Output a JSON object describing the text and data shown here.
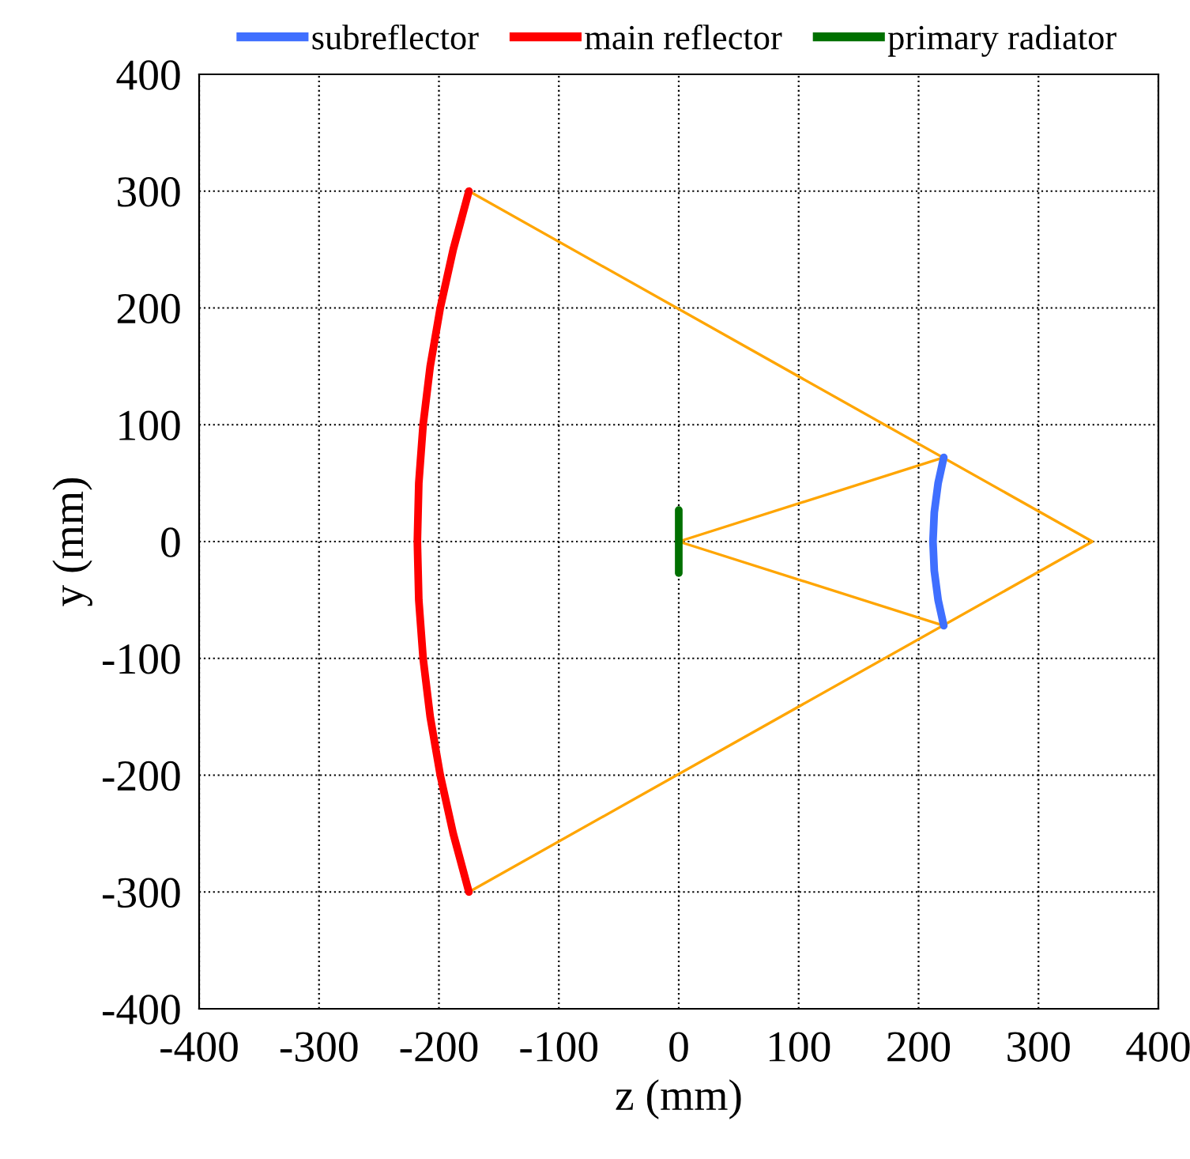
{
  "chart_data": {
    "type": "line",
    "xlabel": "z (mm)",
    "ylabel": "y (mm)",
    "xlim": [
      -400,
      400
    ],
    "ylim": [
      -400,
      400
    ],
    "xticks": [
      -400,
      -300,
      -200,
      -100,
      0,
      100,
      200,
      300,
      400
    ],
    "yticks": [
      -400,
      -300,
      -200,
      -100,
      0,
      100,
      200,
      300,
      400
    ],
    "grid": true,
    "legend": "top",
    "line_style": "solid",
    "marker": "none",
    "series": [
      {
        "name": "subreflector",
        "color": "#3f6fff",
        "x": [
          221,
          216.3,
          213.1,
          212,
          213.1,
          216.3,
          221
        ],
        "values": [
          72,
          50,
          25,
          0,
          -25,
          -50,
          -72
        ]
      },
      {
        "name": "main reflector",
        "color": "#ff0000",
        "x": [
          -175,
          -188.1,
          -198.9,
          -207.3,
          -213.2,
          -216.8,
          -218,
          -216.8,
          -213.2,
          -207.3,
          -198.9,
          -188.1,
          -175
        ],
        "values": [
          300,
          250,
          200,
          150,
          100,
          50,
          0,
          -50,
          -100,
          -150,
          -200,
          -250,
          -300
        ]
      },
      {
        "name": "primary radiator",
        "color": "#007000",
        "x": [
          0,
          0
        ],
        "values": [
          27,
          -27
        ]
      },
      {
        "color": "#ffa500",
        "x": [
          -175,
          345,
          -175
        ],
        "values": [
          300,
          0,
          -300
        ]
      },
      {
        "color": "#ffa500",
        "x": [
          221,
          0,
          221
        ],
        "values": [
          72,
          0,
          -72
        ]
      }
    ]
  }
}
